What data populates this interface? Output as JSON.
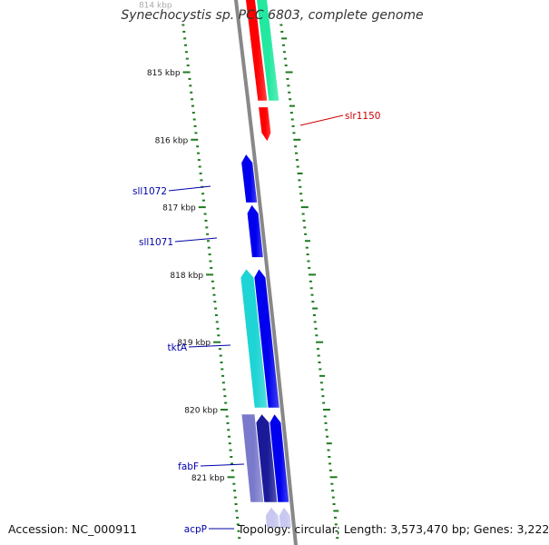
{
  "title": "Synechocystis sp. PCC 6803, complete genome",
  "footer": {
    "accession": "Accession: NC_000911",
    "summary": "Topology: circular; Length: 3,573,470 bp; Genes: 3,222"
  },
  "colors": {
    "backbone": "#888888",
    "tick": "#1e7a1e",
    "tick_label": "#111111",
    "forward_red": "#ff0000",
    "forward_green": "#22e8a0",
    "reverse_blue": "#0000ee",
    "reverse_cyan": "#1ed4d4",
    "reverse_purple": "#7a7acc",
    "reverse_navy": "#1a1a99",
    "reverse_lavender": "#c8c8f0",
    "label_red": "#cc0000",
    "label_blue": "#0000aa"
  },
  "ticks": [
    {
      "label": "814 kbp",
      "kbp": 814
    },
    {
      "label": "815 kbp",
      "kbp": 815
    },
    {
      "label": "816 kbp",
      "kbp": 816
    },
    {
      "label": "817 kbp",
      "kbp": 817
    },
    {
      "label": "818 kbp",
      "kbp": 818
    },
    {
      "label": "819 kbp",
      "kbp": 819
    },
    {
      "label": "820 kbp",
      "kbp": 820
    },
    {
      "label": "821 kbp",
      "kbp": 821
    }
  ],
  "genes": [
    {
      "name": "slr1150",
      "labeled": true,
      "strand": "+",
      "lane": "f1",
      "start_kbp": 813.8,
      "end_kbp": 815.42,
      "color": "red",
      "arrow": false
    },
    {
      "name": "slr1150",
      "labeled": false,
      "strand": "+",
      "lane": "f1",
      "start_kbp": 815.52,
      "end_kbp": 816.02,
      "color": "red",
      "arrow": true
    },
    {
      "name": "",
      "labeled": false,
      "strand": "+",
      "lane": "f2",
      "start_kbp": 813.8,
      "end_kbp": 815.42,
      "color": "green",
      "arrow": false
    },
    {
      "name": "sll1072",
      "labeled": true,
      "strand": "-",
      "lane": "r1",
      "start_kbp": 816.22,
      "end_kbp": 816.93,
      "color": "blue",
      "arrow": true
    },
    {
      "name": "sll1071",
      "labeled": true,
      "strand": "-",
      "lane": "r1",
      "start_kbp": 816.97,
      "end_kbp": 817.74,
      "color": "blue",
      "arrow": true
    },
    {
      "name": "",
      "labeled": false,
      "strand": "-",
      "lane": "r1",
      "start_kbp": 817.92,
      "end_kbp": 819.97,
      "color": "blue",
      "arrow": true
    },
    {
      "name": "tktA",
      "labeled": true,
      "strand": "-",
      "lane": "r2",
      "start_kbp": 817.92,
      "end_kbp": 819.97,
      "color": "cyan",
      "arrow": true
    },
    {
      "name": "",
      "labeled": false,
      "strand": "-",
      "lane": "r1",
      "start_kbp": 820.07,
      "end_kbp": 821.37,
      "color": "blue",
      "arrow": true
    },
    {
      "name": "",
      "labeled": false,
      "strand": "-",
      "lane": "r2",
      "start_kbp": 820.07,
      "end_kbp": 821.37,
      "color": "navy",
      "arrow": true
    },
    {
      "name": "fabF",
      "labeled": true,
      "strand": "-",
      "lane": "r3",
      "start_kbp": 820.07,
      "end_kbp": 821.37,
      "color": "purple",
      "arrow": false
    },
    {
      "name": "acpP",
      "labeled": true,
      "strand": "-",
      "lane": "r1",
      "start_kbp": 821.45,
      "end_kbp": 821.75,
      "color": "lavender",
      "arrow": true
    },
    {
      "name": "",
      "labeled": false,
      "strand": "-",
      "lane": "r2",
      "start_kbp": 821.45,
      "end_kbp": 821.75,
      "color": "lavender",
      "arrow": true
    }
  ]
}
